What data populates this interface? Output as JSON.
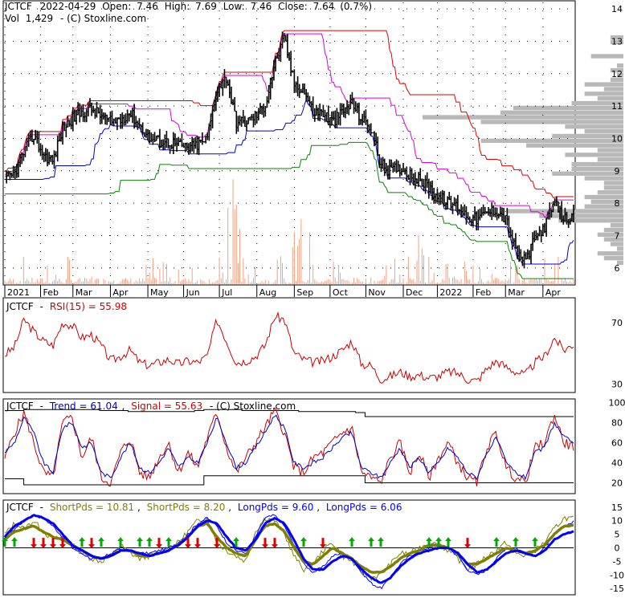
{
  "colors": {
    "price": "#000000",
    "band_upper": "#dd0000",
    "band_mid": "#dd00dd",
    "band_low": "#0000cc",
    "band_green": "#008800",
    "volume": "#f4a080",
    "profile": "#b8b8b8",
    "rsi": "#cc0000",
    "trend": "#0000cc",
    "signal": "#cc0000",
    "short": "#808000",
    "long": "#0000ff",
    "arrow_up": "#00aa00",
    "arrow_down": "#dd0000"
  },
  "chart_data": [
    {
      "type": "candlestick",
      "name": "price",
      "header": {
        "symbol": "JCTCF",
        "date": "2022-04-29",
        "open_label": "Open:",
        "open": "7.46",
        "high_label": "High:",
        "high": "7.69",
        "low_label": "Low:",
        "low": "7.46",
        "close_label": "Close:",
        "close": "7.64",
        "change": "(0.7%)",
        "vol_label": "Vol",
        "vol": "1,429",
        "source": "- (C) Stoxline.com"
      },
      "ylim": [
        5.5,
        14.2
      ],
      "y_ticks": [
        6,
        7,
        8,
        9,
        10,
        11,
        12,
        13,
        14
      ],
      "x_ticks": [
        "2021",
        "Feb",
        "Mar",
        "Apr",
        "May",
        "Jun",
        "Jul",
        "Aug",
        "Sep",
        "Oct",
        "Nov",
        "Dec",
        "2022",
        "Feb",
        "Mar",
        "Apr"
      ],
      "x_tick_index": [
        0,
        21,
        40,
        62,
        84,
        105,
        126,
        148,
        170,
        191,
        212,
        234,
        254,
        275,
        294,
        316
      ],
      "closes": [
        8.7,
        8.9,
        9.6,
        10.1,
        9.5,
        9.3,
        10.3,
        10.6,
        10.8,
        10.9,
        10.7,
        10.5,
        10.6,
        10.8,
        10.4,
        10.0,
        9.9,
        9.9,
        9.8,
        9.7,
        9.8,
        10.0,
        11.5,
        11.9,
        10.5,
        10.5,
        10.7,
        11.0,
        12.3,
        13.1,
        11.7,
        11.5,
        10.8,
        10.8,
        10.5,
        10.8,
        11.1,
        10.6,
        10.3,
        9.2,
        9.0,
        9.1,
        8.9,
        8.7,
        8.5,
        8.2,
        8.0,
        7.9,
        7.6,
        7.5,
        7.7,
        7.8,
        7.5,
        6.5,
        6.2,
        6.9,
        7.3,
        8.0,
        7.5,
        7.64
      ],
      "grid": true
    },
    {
      "type": "line",
      "name": "rsi",
      "label_symbol": "JCTCF",
      "label": "RSI(15) = 55.98",
      "ylim": [
        25,
        85
      ],
      "y_ticks": [
        30,
        70
      ],
      "values": [
        49,
        54,
        72,
        64,
        58,
        55,
        70,
        68,
        60,
        62,
        55,
        45,
        48,
        52,
        44,
        42,
        44,
        46,
        43,
        45,
        44,
        48,
        72,
        58,
        44,
        45,
        48,
        55,
        74,
        72,
        50,
        46,
        44,
        45,
        48,
        52,
        58,
        43,
        42,
        33,
        35,
        38,
        35,
        36,
        34,
        35,
        38,
        37,
        33,
        32,
        40,
        45,
        41,
        38,
        36,
        44,
        48,
        60,
        52,
        55.98
      ]
    },
    {
      "type": "line",
      "name": "trend",
      "label_symbol": "JCTCF",
      "series_labels": [
        "Trend = 61.04",
        "Signal = 55.63"
      ],
      "source": "- (C) Stoxline.com",
      "ylim": [
        10,
        102
      ],
      "y_ticks": [
        20,
        40,
        60,
        80,
        100
      ],
      "trend": [
        50,
        60,
        85,
        70,
        40,
        30,
        75,
        80,
        55,
        60,
        30,
        25,
        45,
        60,
        35,
        30,
        40,
        55,
        35,
        45,
        40,
        60,
        85,
        60,
        35,
        40,
        55,
        70,
        88,
        75,
        40,
        35,
        40,
        45,
        55,
        65,
        70,
        35,
        30,
        25,
        40,
        55,
        35,
        45,
        30,
        40,
        55,
        45,
        30,
        25,
        50,
        65,
        40,
        30,
        25,
        50,
        55,
        80,
        65,
        61.04
      ],
      "signal": [
        45,
        70,
        90,
        60,
        30,
        25,
        80,
        85,
        45,
        65,
        25,
        20,
        50,
        65,
        30,
        25,
        45,
        60,
        30,
        50,
        35,
        65,
        90,
        55,
        30,
        45,
        60,
        75,
        92,
        70,
        35,
        30,
        45,
        50,
        60,
        70,
        75,
        30,
        25,
        20,
        45,
        60,
        30,
        50,
        25,
        45,
        60,
        40,
        25,
        20,
        55,
        70,
        35,
        25,
        20,
        55,
        60,
        88,
        60,
        55.63
      ],
      "band_upper": [
        92,
        92,
        93,
        93,
        93,
        93,
        93,
        93,
        93,
        93,
        92,
        92,
        92,
        91,
        91,
        91,
        91,
        91,
        91,
        91,
        92,
        93,
        93,
        93,
        93,
        92,
        92,
        92,
        92,
        92,
        92,
        91,
        91,
        91,
        91,
        91,
        91,
        90,
        86,
        86,
        86,
        86,
        86,
        86,
        86,
        86,
        86,
        86,
        86,
        86,
        86,
        86,
        86,
        86,
        86,
        86,
        86,
        86,
        86,
        86
      ],
      "band_lower": [
        24,
        24,
        18,
        18,
        18,
        18,
        18,
        18,
        18,
        18,
        18,
        18,
        18,
        18,
        18,
        18,
        18,
        18,
        18,
        18,
        18,
        27,
        27,
        27,
        27,
        27,
        27,
        27,
        27,
        27,
        27,
        27,
        27,
        27,
        27,
        27,
        27,
        27,
        20,
        20,
        20,
        20,
        20,
        20,
        20,
        20,
        20,
        20,
        20,
        20,
        20,
        20,
        20,
        20,
        20,
        20,
        20,
        20,
        20,
        20
      ]
    },
    {
      "type": "line",
      "name": "pds",
      "label_symbol": "JCTCF",
      "series_labels": [
        "ShortPds = 10.81",
        "ShortPds = 8.20",
        "LongPds = 9.60",
        "LongPds = 6.06"
      ],
      "ylim": [
        -17,
        17
      ],
      "y_ticks": [
        -15,
        -10,
        -5,
        0,
        5,
        10,
        15
      ],
      "short_fast": [
        5,
        9,
        7,
        10,
        6,
        3,
        4,
        1,
        -2,
        -4,
        -5,
        -3,
        1,
        -2,
        -4,
        -3,
        -2,
        0,
        2,
        6,
        10,
        11,
        2,
        -1,
        -3,
        -5,
        6,
        11,
        10,
        5,
        -3,
        -8,
        -6,
        -1,
        2,
        -3,
        -5,
        -9,
        -11,
        -10,
        -6,
        -2,
        -2,
        0,
        2,
        1,
        -1,
        -4,
        -8,
        -6,
        -3,
        -1,
        2,
        -2,
        -3,
        -1,
        2,
        7,
        11,
        10.81
      ],
      "short_slow": [
        3,
        6,
        7,
        8,
        6,
        4,
        3,
        1,
        -1,
        -3,
        -4,
        -3,
        -1,
        -1,
        -3,
        -3,
        -2,
        -1,
        1,
        4,
        8,
        9,
        4,
        0,
        -2,
        -3,
        3,
        8,
        9,
        6,
        0,
        -5,
        -6,
        -3,
        0,
        -2,
        -4,
        -7,
        -9,
        -9,
        -7,
        -4,
        -2,
        -1,
        1,
        1,
        0,
        -2,
        -6,
        -6,
        -4,
        -2,
        0,
        -1,
        -2,
        -1,
        1,
        5,
        8,
        8.2
      ],
      "long_fast": [
        3,
        7,
        10,
        12,
        11,
        8,
        4,
        0,
        -2,
        -4,
        -4,
        -2,
        0,
        -1,
        -2,
        -2,
        -1,
        0,
        2,
        5,
        9,
        11,
        8,
        2,
        -1,
        -2,
        4,
        11,
        12,
        8,
        1,
        -6,
        -9,
        -7,
        -3,
        -2,
        -4,
        -9,
        -13,
        -15,
        -11,
        -6,
        -3,
        -1,
        0,
        1,
        0,
        -3,
        -8,
        -10,
        -8,
        -4,
        0,
        0,
        -2,
        -3,
        0,
        5,
        8,
        9.6
      ],
      "long_slow": [
        4,
        8,
        10,
        12,
        11,
        9,
        5,
        1,
        -1,
        -3,
        -4,
        -3,
        -1,
        -1,
        -2,
        -3,
        -2,
        -1,
        1,
        4,
        8,
        10,
        9,
        4,
        0,
        -1,
        3,
        9,
        11,
        9,
        3,
        -4,
        -8,
        -8,
        -5,
        -3,
        -4,
        -8,
        -11,
        -13,
        -11,
        -7,
        -4,
        -2,
        -1,
        0,
        0,
        -2,
        -6,
        -9,
        -8,
        -5,
        -2,
        -1,
        -2,
        -3,
        -1,
        3,
        5,
        6.06
      ],
      "arrows": [
        {
          "at": 0,
          "dir": "up"
        },
        {
          "at": 1,
          "dir": "up"
        },
        {
          "at": 3,
          "dir": "down"
        },
        {
          "at": 4,
          "dir": "down"
        },
        {
          "at": 5,
          "dir": "down"
        },
        {
          "at": 6,
          "dir": "down"
        },
        {
          "at": 8,
          "dir": "up"
        },
        {
          "at": 9,
          "dir": "down"
        },
        {
          "at": 10,
          "dir": "up"
        },
        {
          "at": 12,
          "dir": "up"
        },
        {
          "at": 14,
          "dir": "up"
        },
        {
          "at": 15,
          "dir": "up"
        },
        {
          "at": 16,
          "dir": "down"
        },
        {
          "at": 17,
          "dir": "up"
        },
        {
          "at": 19,
          "dir": "down"
        },
        {
          "at": 20,
          "dir": "down"
        },
        {
          "at": 22,
          "dir": "down"
        },
        {
          "at": 24,
          "dir": "up"
        },
        {
          "at": 27,
          "dir": "down"
        },
        {
          "at": 28,
          "dir": "down"
        },
        {
          "at": 31,
          "dir": "up"
        },
        {
          "at": 33,
          "dir": "down"
        },
        {
          "at": 36,
          "dir": "up"
        },
        {
          "at": 38,
          "dir": "up"
        },
        {
          "at": 39,
          "dir": "up"
        },
        {
          "at": 44,
          "dir": "up"
        },
        {
          "at": 45,
          "dir": "up"
        },
        {
          "at": 46,
          "dir": "up"
        },
        {
          "at": 48,
          "dir": "down"
        },
        {
          "at": 51,
          "dir": "up"
        },
        {
          "at": 53,
          "dir": "up"
        },
        {
          "at": 55,
          "dir": "up"
        }
      ]
    }
  ]
}
